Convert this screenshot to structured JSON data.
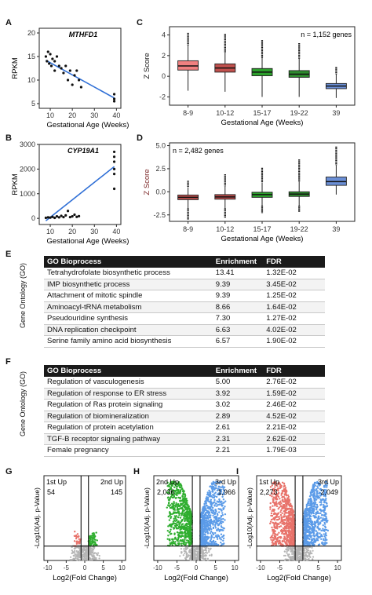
{
  "panels": {
    "A": "A",
    "B": "B",
    "C": "C",
    "D": "D",
    "E": "E",
    "F": "F",
    "G": "G",
    "H": "H",
    "I": "I"
  },
  "chart_data": [
    {
      "id": "A",
      "type": "scatter",
      "title": "MTHFD1",
      "xlabel": "Gestational Age (Weeks)",
      "ylabel": "RPKM",
      "xlim": [
        5,
        42
      ],
      "ylim": [
        4,
        21
      ],
      "xticks": [
        10,
        20,
        30,
        40
      ],
      "yticks": [
        5,
        10,
        15,
        20
      ],
      "points": [
        [
          8,
          15
        ],
        [
          8.5,
          14
        ],
        [
          9,
          16
        ],
        [
          9.5,
          13.5
        ],
        [
          10,
          15.5
        ],
        [
          10.5,
          13
        ],
        [
          11,
          14.5
        ],
        [
          12,
          12
        ],
        [
          12,
          14
        ],
        [
          13,
          15
        ],
        [
          14,
          13
        ],
        [
          15,
          12.5
        ],
        [
          16,
          11.5
        ],
        [
          17,
          13
        ],
        [
          18,
          10
        ],
        [
          19,
          12
        ],
        [
          20,
          9
        ],
        [
          21,
          11
        ],
        [
          22,
          12
        ],
        [
          23,
          10
        ],
        [
          24,
          8.5
        ],
        [
          39,
          5.5
        ],
        [
          39,
          6
        ],
        [
          39,
          7
        ]
      ],
      "trend": [
        [
          8,
          14.2
        ],
        [
          39,
          6.2
        ]
      ]
    },
    {
      "id": "B",
      "type": "scatter",
      "title": "CYP19A1",
      "xlabel": "Gestational Age (Weeks)",
      "ylabel": "RPKM",
      "xlim": [
        5,
        42
      ],
      "ylim": [
        -250,
        3000
      ],
      "xticks": [
        10,
        20,
        30,
        40
      ],
      "yticks": [
        0,
        1000,
        2000,
        3000
      ],
      "points": [
        [
          8,
          20
        ],
        [
          9,
          40
        ],
        [
          10,
          30
        ],
        [
          11,
          60
        ],
        [
          12,
          20
        ],
        [
          13,
          80
        ],
        [
          14,
          40
        ],
        [
          15,
          100
        ],
        [
          16,
          50
        ],
        [
          17,
          120
        ],
        [
          18,
          300
        ],
        [
          19,
          50
        ],
        [
          20,
          80
        ],
        [
          21,
          150
        ],
        [
          22,
          60
        ],
        [
          23,
          90
        ],
        [
          39,
          1200
        ],
        [
          39,
          1800
        ],
        [
          39,
          2000
        ],
        [
          39,
          2300
        ],
        [
          39,
          2500
        ],
        [
          39,
          2700
        ]
      ],
      "trend": [
        [
          8,
          -100
        ],
        [
          39,
          2100
        ]
      ]
    },
    {
      "id": "C",
      "type": "box",
      "annotation": "n = 1,152 genes",
      "xlabel": "Gestational Age (Weeks)",
      "ylabel": "Z Score",
      "ylim": [
        -2.8,
        4.8
      ],
      "yticks": [
        -2,
        0,
        2,
        4
      ],
      "categories": [
        "8-9",
        "10-12",
        "15-17",
        "19-22",
        "39"
      ],
      "colors": [
        "#f08080",
        "#c0504d",
        "#2ca02c",
        "#2e8b2e",
        "#6b8fd6"
      ],
      "boxes": [
        {
          "min": -1.4,
          "q1": 0.6,
          "median": 1.0,
          "q3": 1.5,
          "max": 3.0,
          "outlier_max": 4.2
        },
        {
          "min": -1.5,
          "q1": 0.4,
          "median": 0.8,
          "q3": 1.2,
          "max": 2.3,
          "outlier_max": 4.1
        },
        {
          "min": -2.0,
          "q1": 0.05,
          "median": 0.4,
          "q3": 0.75,
          "max": 1.8,
          "outlier_max": 3.5
        },
        {
          "min": -2.0,
          "q1": -0.1,
          "median": 0.2,
          "q3": 0.55,
          "max": 1.7,
          "outlier_max": 3.2
        },
        {
          "min": -2.1,
          "q1": -1.2,
          "median": -0.95,
          "q3": -0.7,
          "max": 0.2,
          "outlier_max": 0.9
        }
      ]
    },
    {
      "id": "D",
      "type": "box",
      "annotation": "n = 2,482 genes",
      "xlabel": "Gestational Age (Weeks)",
      "ylabel": "Z Score",
      "ylim": [
        -3.2,
        5.3
      ],
      "yticks": [
        -2.5,
        0.0,
        2.5,
        5.0
      ],
      "categories": [
        "8-9",
        "10-12",
        "15-17",
        "19-22",
        "39"
      ],
      "colors": [
        "#c0504d",
        "#b84a48",
        "#2ca02c",
        "#2e8b2e",
        "#6b8fd6"
      ],
      "boxes": [
        {
          "min": -1.8,
          "q1": -0.85,
          "median": -0.6,
          "q3": -0.35,
          "max": 0.5,
          "outlier_min": -3.0,
          "outlier_max": 1.2
        },
        {
          "min": -1.8,
          "q1": -0.8,
          "median": -0.55,
          "q3": -0.3,
          "max": 0.6,
          "outlier_min": -2.8,
          "outlier_max": 1.9
        },
        {
          "min": -1.5,
          "q1": -0.6,
          "median": -0.3,
          "q3": -0.05,
          "max": 1.0,
          "outlier_min": -2.3,
          "outlier_max": 2.6
        },
        {
          "min": -1.5,
          "q1": -0.5,
          "median": -0.25,
          "q3": 0.0,
          "max": 1.1,
          "outlier_min": -2.2,
          "outlier_max": 3.5
        },
        {
          "min": -0.3,
          "q1": 0.7,
          "median": 1.1,
          "q3": 1.6,
          "max": 2.9,
          "outlier_max": 4.9
        }
      ]
    },
    {
      "id": "G",
      "type": "scatter",
      "subtype": "volcano",
      "xlabel": "Log2(Fold Change)",
      "ylabel": "-Log10(Adj. p-Value)",
      "xlim": [
        -11,
        11
      ],
      "xticks": [
        -10,
        -5,
        0,
        5,
        10
      ],
      "left_label": "1st Up",
      "left_count": "54",
      "right_label": "2nd Up",
      "right_count": "145",
      "left_color": "#e8736b",
      "right_color": "#2fae2f",
      "spread": 0.3,
      "left_n": 30,
      "right_n": 70
    },
    {
      "id": "H",
      "type": "scatter",
      "subtype": "volcano",
      "xlabel": "Log2(Fold Change)",
      "ylabel": "-Log10(Adj. p-Value)",
      "xlim": [
        -11,
        11
      ],
      "xticks": [
        -10,
        -5,
        0,
        5,
        10
      ],
      "left_label": "2nd Up",
      "left_count": "2,036",
      "right_label": "3rd Up",
      "right_count": "1,966",
      "left_color": "#2fae2f",
      "right_color": "#5b9be8",
      "spread": 1.0,
      "left_n": 700,
      "right_n": 700
    },
    {
      "id": "I",
      "type": "scatter",
      "subtype": "volcano",
      "xlabel": "Log2(Fold Change)",
      "ylabel": "-Log10(Adj. p-Value)",
      "xlim": [
        -11,
        11
      ],
      "xticks": [
        -10,
        -5,
        0,
        5,
        10
      ],
      "left_label": "1st Up",
      "left_count": "2,273",
      "right_label": "3rd Up",
      "right_count": "2,049",
      "left_color": "#e8736b",
      "right_color": "#5b9be8",
      "spread": 1.0,
      "left_n": 750,
      "right_n": 700
    }
  ],
  "tables": {
    "side_label": "Gene Ontology (GO)",
    "headers": [
      "GO Bioprocess",
      "Enrichment",
      "FDR"
    ],
    "E": [
      [
        "Tetrahydrofolate biosynthetic process",
        "13.41",
        "1.32E-02"
      ],
      [
        "IMP biosynthetic process",
        "9.39",
        "3.45E-02"
      ],
      [
        "Attachment of mitotic spindle",
        "9.39",
        "1.25E-02"
      ],
      [
        "Aminoacyl-tRNA metabolism",
        "8.66",
        "1.64E-02"
      ],
      [
        "Pseudouridine synthesis",
        "7.30",
        "1.27E-02"
      ],
      [
        "DNA replication checkpoint",
        "6.63",
        "4.02E-02"
      ],
      [
        "Serine family amino acid biosynthesis",
        "6.57",
        "1.90E-02"
      ]
    ],
    "F": [
      [
        "Regulation of vasculogenesis",
        "5.00",
        "2.76E-02"
      ],
      [
        "Regulation of response to ER stress",
        "3.92",
        "1.59E-02"
      ],
      [
        "Regulation of Ras protein signaling",
        "3.02",
        "2.46E-02"
      ],
      [
        "Regulation of biomineralization",
        "2.89",
        "4.52E-02"
      ],
      [
        "Regulation of protein acetylation",
        "2.61",
        "2.21E-02"
      ],
      [
        "TGF-B receptor signaling pathway",
        "2.31",
        "2.62E-02"
      ],
      [
        "Female pregnancy",
        "2.21",
        "1.79E-03"
      ]
    ]
  }
}
